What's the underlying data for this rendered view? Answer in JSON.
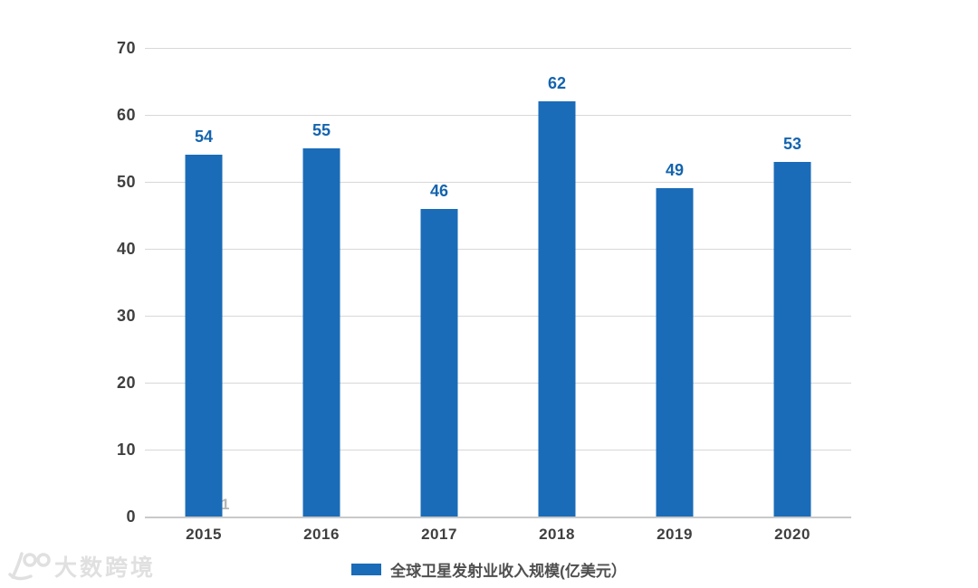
{
  "chart_data": {
    "type": "bar",
    "title": "",
    "categories": [
      "2015",
      "2016",
      "2017",
      "2018",
      "2019",
      "2020"
    ],
    "values": [
      54,
      55,
      46,
      62,
      49,
      53
    ],
    "series_name": "全球卫星发射业收入规模(亿美元）",
    "xlabel": "",
    "ylabel": "",
    "ylim": [
      0,
      70
    ],
    "yticks": [
      0,
      10,
      20,
      30,
      40,
      50,
      60,
      70
    ],
    "grid": "horizontal",
    "legend_position": "bottom-center",
    "colors": {
      "bar": "#1a6cb8",
      "value_label": "#1464ae",
      "axis_text": "#3f3f3f",
      "legend_text": "#4f4f4f",
      "gridline": "#d8d8d8",
      "baseline": "#c9c9c9"
    }
  },
  "watermark": {
    "logo": "100",
    "brand": "大数跨境",
    "stray_digit": "1"
  }
}
